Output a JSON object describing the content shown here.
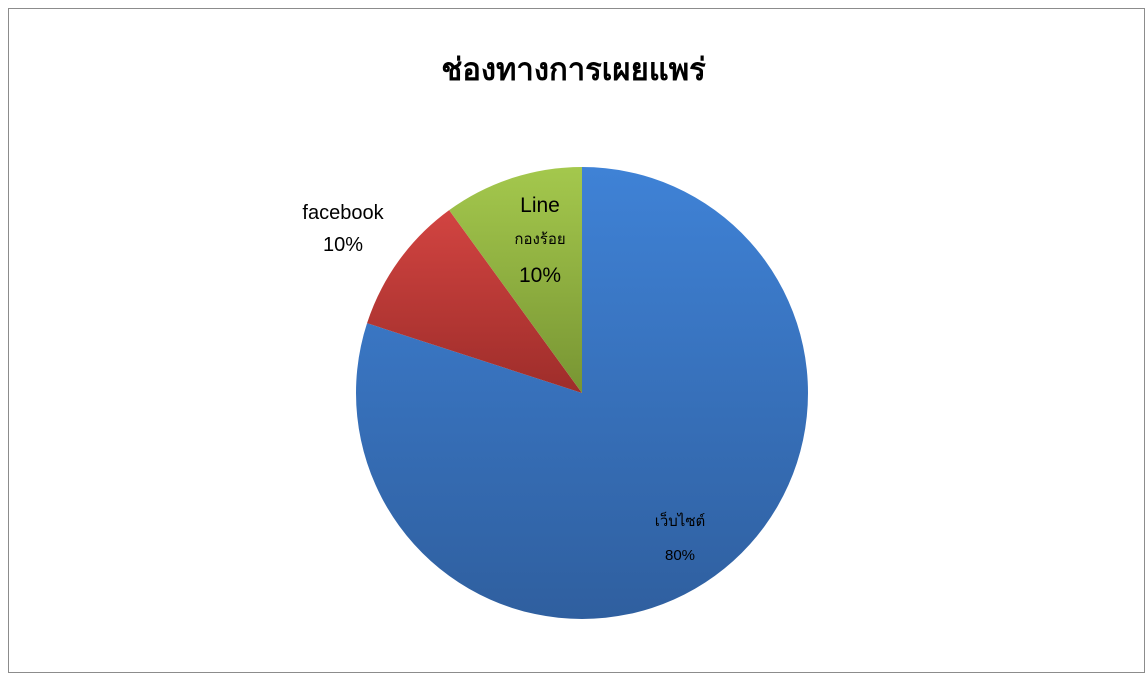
{
  "chart_data": {
    "type": "pie",
    "title": "ช่องทางการเผยแพร่",
    "slices": [
      {
        "name": "เว็บไซต์",
        "value": 80,
        "label": "80%",
        "color": "#3d7bca"
      },
      {
        "name": "facebook",
        "value": 10,
        "label": "10%",
        "color": "#c03a38"
      },
      {
        "name": "Line กองร้อย",
        "name_lines": [
          "Line",
          "กองร้อย"
        ],
        "value": 10,
        "label": "10%",
        "color": "#93b740"
      }
    ],
    "legend": "none",
    "start_angle": "12 o'clock, clockwise"
  }
}
